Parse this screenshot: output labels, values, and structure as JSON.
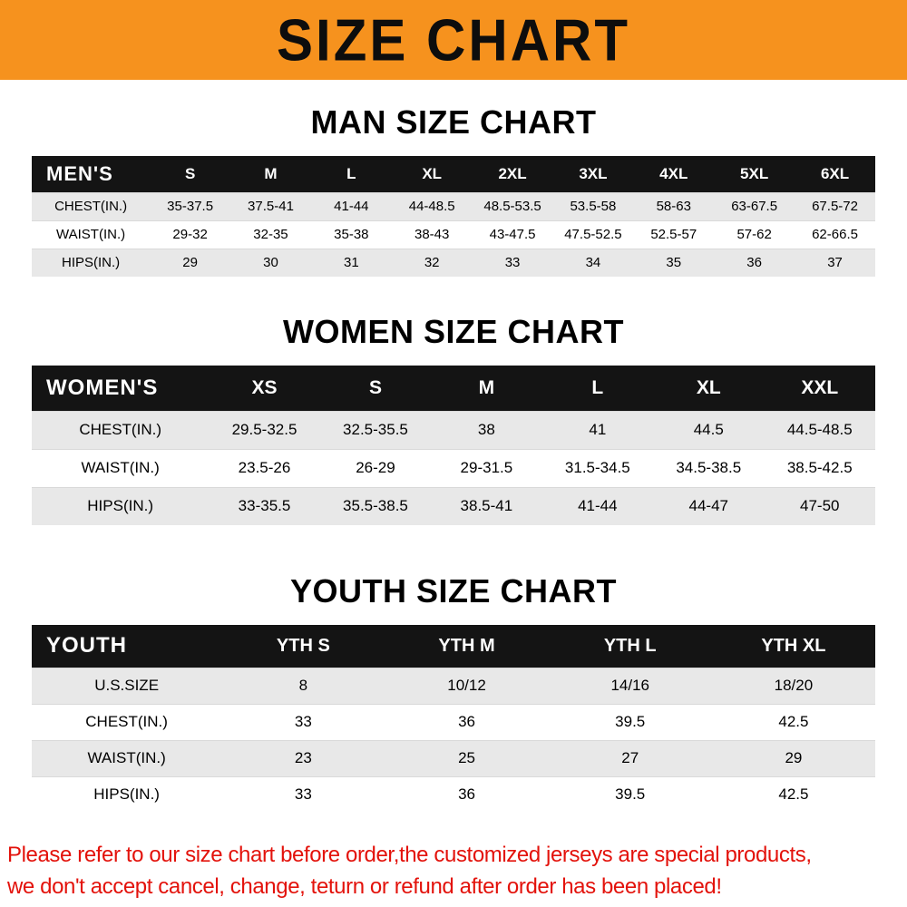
{
  "banner": {
    "title": "SIZE CHART"
  },
  "chart_data": [
    {
      "type": "table",
      "title": "MAN SIZE CHART",
      "header_label": "MEN'S",
      "columns": [
        "S",
        "M",
        "L",
        "XL",
        "2XL",
        "3XL",
        "4XL",
        "5XL",
        "6XL"
      ],
      "rows": [
        {
          "label": "CHEST(IN.)",
          "values": [
            "35-37.5",
            "37.5-41",
            "41-44",
            "44-48.5",
            "48.5-53.5",
            "53.5-58",
            "58-63",
            "63-67.5",
            "67.5-72"
          ]
        },
        {
          "label": "WAIST(IN.)",
          "values": [
            "29-32",
            "32-35",
            "35-38",
            "38-43",
            "43-47.5",
            "47.5-52.5",
            "52.5-57",
            "57-62",
            "62-66.5"
          ]
        },
        {
          "label": "HIPS(IN.)",
          "values": [
            "29",
            "30",
            "31",
            "32",
            "33",
            "34",
            "35",
            "36",
            "37"
          ]
        }
      ]
    },
    {
      "type": "table",
      "title": "WOMEN SIZE CHART",
      "header_label": "WOMEN'S",
      "columns": [
        "XS",
        "S",
        "M",
        "L",
        "XL",
        "XXL"
      ],
      "rows": [
        {
          "label": "CHEST(IN.)",
          "values": [
            "29.5-32.5",
            "32.5-35.5",
            "38",
            "41",
            "44.5",
            "44.5-48.5"
          ]
        },
        {
          "label": "WAIST(IN.)",
          "values": [
            "23.5-26",
            "26-29",
            "29-31.5",
            "31.5-34.5",
            "34.5-38.5",
            "38.5-42.5"
          ]
        },
        {
          "label": "HIPS(IN.)",
          "values": [
            "33-35.5",
            "35.5-38.5",
            "38.5-41",
            "41-44",
            "44-47",
            "47-50"
          ]
        }
      ]
    },
    {
      "type": "table",
      "title": "YOUTH SIZE CHART",
      "header_label": "YOUTH",
      "columns": [
        "YTH S",
        "YTH M",
        "YTH L",
        "YTH XL"
      ],
      "rows": [
        {
          "label": "U.S.SIZE",
          "values": [
            "8",
            "10/12",
            "14/16",
            "18/20"
          ]
        },
        {
          "label": "CHEST(IN.)",
          "values": [
            "33",
            "36",
            "39.5",
            "42.5"
          ]
        },
        {
          "label": "WAIST(IN.)",
          "values": [
            "23",
            "25",
            "27",
            "29"
          ]
        },
        {
          "label": "HIPS(IN.)",
          "values": [
            "33",
            "36",
            "39.5",
            "42.5"
          ]
        }
      ]
    }
  ],
  "footer": {
    "line1": "Please refer to our size chart before order,the customized jerseys are special products,",
    "line2": "we don't accept cancel, change, teturn or refund after order has been placed!"
  },
  "colors": {
    "banner_bg": "#F6921E",
    "table_header_bg": "#141414",
    "row_alt_bg": "#E8E8E8",
    "note_red": "#E3120B"
  }
}
